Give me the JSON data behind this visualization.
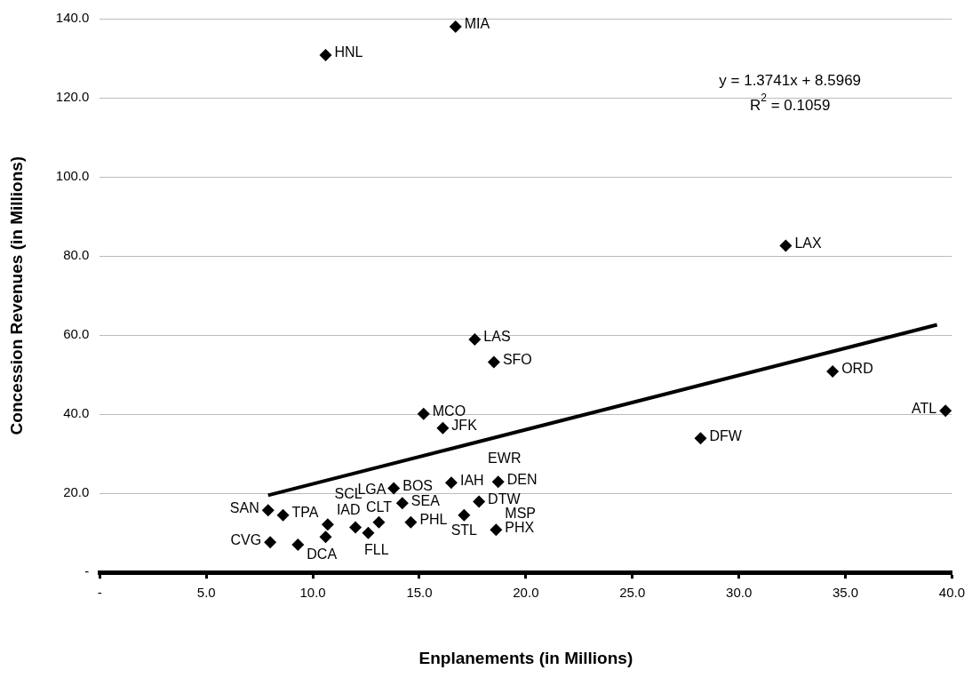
{
  "chart_data": {
    "type": "scatter",
    "xlabel": "Enplanements (in Millions)",
    "ylabel": "Concession Revenues (in Millions)",
    "xlim": [
      0,
      40
    ],
    "xticks": [
      {
        "value": 0,
        "label": "-"
      },
      {
        "value": 5,
        "label": "5.0"
      },
      {
        "value": 10,
        "label": "10.0"
      },
      {
        "value": 15,
        "label": "15.0"
      },
      {
        "value": 20,
        "label": "20.0"
      },
      {
        "value": 25,
        "label": "25.0"
      },
      {
        "value": 30,
        "label": "30.0"
      },
      {
        "value": 35,
        "label": "35.0"
      },
      {
        "value": 40,
        "label": "40.0"
      }
    ],
    "ylim": [
      0,
      140
    ],
    "yticks": [
      {
        "value": 0,
        "label": "-"
      },
      {
        "value": 20,
        "label": "20.0"
      },
      {
        "value": 40,
        "label": "40.0"
      },
      {
        "value": 60,
        "label": "60.0"
      },
      {
        "value": 80,
        "label": "80.0"
      },
      {
        "value": 100,
        "label": "100.0"
      },
      {
        "value": 120,
        "label": "120.0"
      },
      {
        "value": 140,
        "label": "140.0"
      }
    ],
    "grid": "y",
    "legend": false,
    "marker": "diamond",
    "series": [
      {
        "color": "#000000",
        "x": [
          10.6,
          16.7,
          32.2,
          17.6,
          18.5,
          34.4,
          39.7,
          15.2,
          16.1,
          28.2,
          13.8,
          16.5,
          18.7,
          7.9,
          8.6,
          8.0,
          9.3,
          10.7,
          10.6,
          12.0,
          12.6,
          13.1,
          14.2,
          14.6,
          17.1,
          17.8,
          18.6
        ],
        "values": [
          130.8,
          138.0,
          82.6,
          58.9,
          53.2,
          50.8,
          40.9,
          40.1,
          36.5,
          33.9,
          21.3,
          22.7,
          22.9,
          15.7,
          14.5,
          7.6,
          7.0,
          12.1,
          9.0,
          11.4,
          10.0,
          12.7,
          17.5,
          12.7,
          14.5,
          17.9,
          10.8
        ]
      },
      {
        "type": "line",
        "color": "#000000",
        "marker": "none",
        "x": [
          7.9,
          39.3
        ],
        "values": [
          19.5,
          62.6
        ]
      }
    ],
    "annotations": [
      "y = 1.3741x + 8.5969",
      "R$^{2}$ = 0.1059",
      {
        "text": "HNL",
        "x": 10.6,
        "y": 130.8
      },
      {
        "text": "MIA",
        "x": 16.7,
        "y": 138.0
      },
      {
        "text": "LAX",
        "x": 32.2,
        "y": 82.6
      },
      {
        "text": "LAS",
        "x": 17.6,
        "y": 58.9
      },
      {
        "text": "SFO",
        "x": 18.5,
        "y": 53.2
      },
      {
        "text": "ORD",
        "x": 34.4,
        "y": 50.8
      },
      {
        "text": "ATL",
        "x": 39.7,
        "y": 40.9
      },
      {
        "text": "MCO",
        "x": 15.2,
        "y": 40.1
      },
      {
        "text": "JFK",
        "x": 16.1,
        "y": 36.5
      },
      {
        "text": "DFW",
        "x": 28.2,
        "y": 33.9
      },
      {
        "text": "BOS",
        "x": 13.8,
        "y": 21.3
      },
      {
        "text": "IAH",
        "x": 16.5,
        "y": 22.7
      },
      {
        "text": "DEN",
        "x": 18.7,
        "y": 22.9
      },
      {
        "text": "SAN",
        "x": 7.9,
        "y": 15.7
      },
      {
        "text": "TPA",
        "x": 8.6,
        "y": 14.5
      },
      {
        "text": "CVG",
        "x": 8.0,
        "y": 7.6
      },
      {
        "text": "DCA",
        "x": 9.3,
        "y": 7.0
      },
      {
        "text": "IAD",
        "x": 10.7,
        "y": 12.1
      },
      {
        "text": "SCL",
        "x": 10.6,
        "y": 9.0
      },
      {
        "text": "FLL",
        "x": 12.0,
        "y": 11.4
      },
      {
        "text": "LGA",
        "x": 12.6,
        "y": 10.0
      },
      {
        "text": "CLT",
        "x": 13.1,
        "y": 12.7
      },
      {
        "text": "SEA",
        "x": 14.2,
        "y": 17.5
      },
      {
        "text": "PHL",
        "x": 14.6,
        "y": 12.7
      },
      {
        "text": "STL",
        "x": 17.1,
        "y": 14.5
      },
      {
        "text": "DTW",
        "x": 17.8,
        "y": 17.9
      },
      {
        "text": "EWR",
        "x": 17.8,
        "y": 17.9
      },
      {
        "text": "PHX",
        "x": 18.6,
        "y": 10.8
      },
      {
        "text": "MSP",
        "x": 18.6,
        "y": 10.8
      }
    ]
  }
}
